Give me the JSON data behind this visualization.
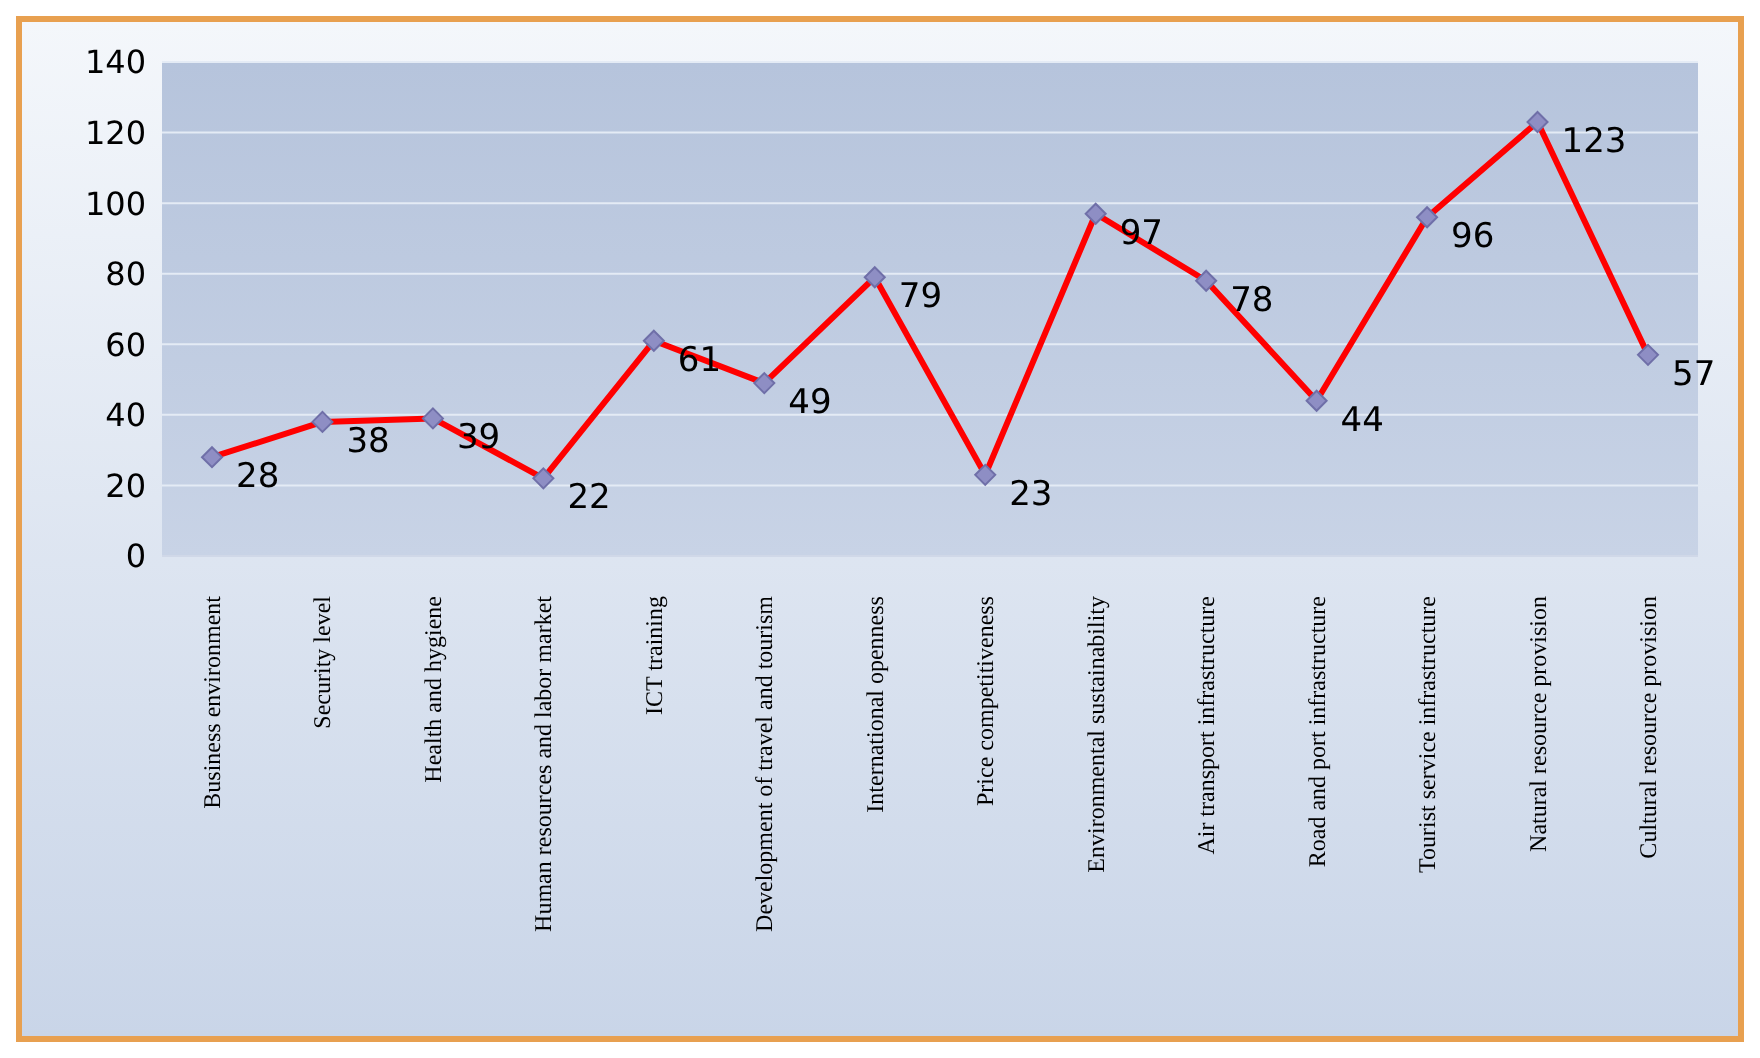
{
  "chart_data": {
    "type": "line",
    "categories": [
      "Business environment",
      "Security level",
      "Health and hygiene",
      "Human resources and labor market",
      "ICT training",
      "Development of travel and tourism",
      "International openness",
      "Price competitiveness",
      "Environmental sustainability",
      "Air transport infrastructure",
      "Road and port infrastructure",
      "Tourist service infrastructure",
      "Natural resource provision",
      "Cultural resource provision"
    ],
    "series": [
      {
        "color": "#ff0000",
        "values": [
          28,
          38,
          39,
          22,
          61,
          49,
          79,
          23,
          97,
          78,
          44,
          96,
          123,
          57
        ]
      }
    ],
    "ylim": [
      0,
      140
    ],
    "yticks": [
      0,
      20,
      40,
      60,
      80,
      100,
      120,
      140
    ],
    "grid": "y",
    "marker": "diamond",
    "line_style": "solid",
    "data_labels": true,
    "legend": false
  }
}
